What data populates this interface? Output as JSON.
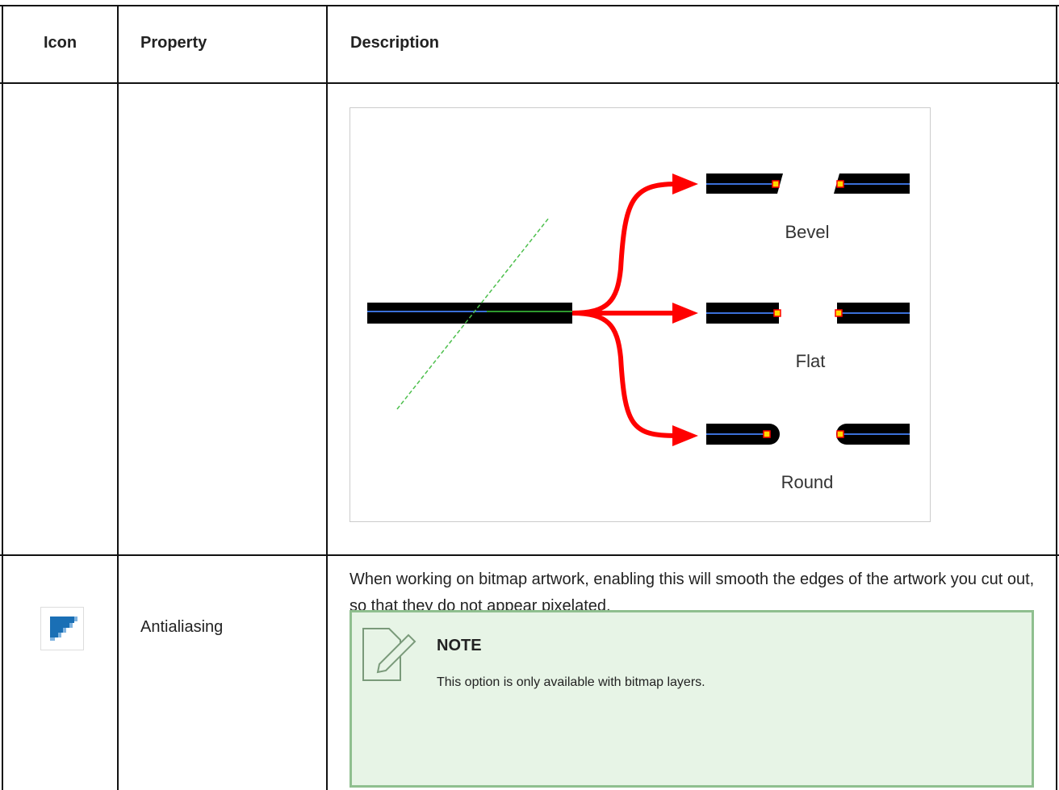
{
  "table": {
    "header": [
      "Icon",
      "Property",
      "Description"
    ],
    "rows": [
      {
        "diagram": {
          "labels": [
            "Bevel",
            "Flat",
            "Round"
          ]
        }
      },
      {
        "property": "Antialiasing",
        "description": "When working on bitmap artwork, enabling this will smooth the edges of the artwork you cut out, so that they do not appear pixelated.",
        "note": {
          "title": "NOTE",
          "text": "This option is only available with bitmap layers."
        }
      }
    ]
  }
}
